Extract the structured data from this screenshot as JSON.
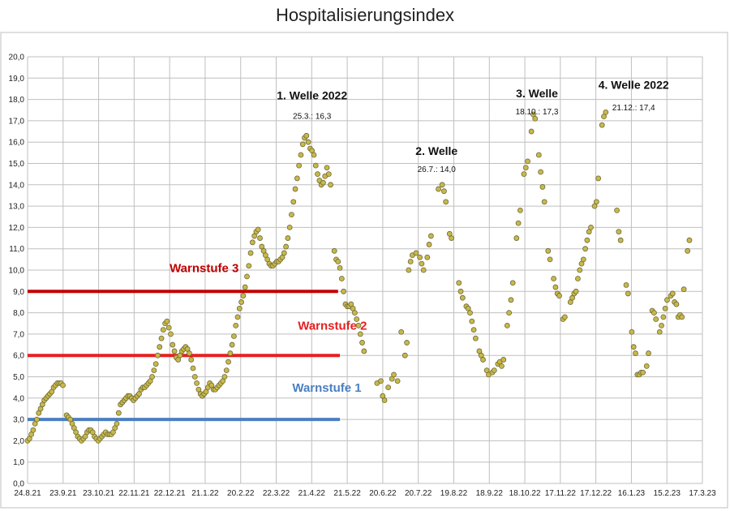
{
  "chart_data": {
    "type": "scatter",
    "title": "Hospitalisierungsindex",
    "xlabel": "",
    "ylabel": "",
    "ylim": [
      0,
      20
    ],
    "y_ticks": [
      "0,0",
      "1,0",
      "2,0",
      "3,0",
      "4,0",
      "5,0",
      "6,0",
      "7,0",
      "8,0",
      "9,0",
      "10,0",
      "11,0",
      "12,0",
      "13,0",
      "14,0",
      "15,0",
      "16,0",
      "17,0",
      "18,0",
      "19,0",
      "20,0"
    ],
    "x_ticks": [
      "24.8.21",
      "23.9.21",
      "23.10.21",
      "22.11.21",
      "22.12.21",
      "21.1.22",
      "20.2.22",
      "22.3.22",
      "21.4.22",
      "21.5.22",
      "20.6.22",
      "20.7.22",
      "19.8.22",
      "18.9.22",
      "18.10.22",
      "17.11.22",
      "17.12.22",
      "16.1.23",
      "15.2.23",
      "17.3.23"
    ],
    "grid": true,
    "marker_color": "#c9b84a",
    "marker_edge": "#6b6b3a",
    "x_unit": "days since 24.8.21",
    "series": [
      {
        "name": "",
        "points": [
          [
            0,
            2.0
          ],
          [
            1,
            2.1
          ],
          [
            2,
            2.3
          ],
          [
            3,
            2.5
          ],
          [
            4,
            2.8
          ],
          [
            5,
            3.0
          ],
          [
            6,
            3.3
          ],
          [
            7,
            3.5
          ],
          [
            8,
            3.7
          ],
          [
            9,
            3.9
          ],
          [
            10,
            4.0
          ],
          [
            11,
            4.1
          ],
          [
            12,
            4.2
          ],
          [
            13,
            4.3
          ],
          [
            14,
            4.5
          ],
          [
            15,
            4.6
          ],
          [
            16,
            4.7
          ],
          [
            17,
            4.7
          ],
          [
            18,
            4.7
          ],
          [
            19,
            4.6
          ],
          [
            21,
            3.2
          ],
          [
            22,
            3.1
          ],
          [
            23,
            3.0
          ],
          [
            24,
            2.8
          ],
          [
            25,
            2.6
          ],
          [
            26,
            2.4
          ],
          [
            27,
            2.2
          ],
          [
            28,
            2.1
          ],
          [
            29,
            2.0
          ],
          [
            30,
            2.1
          ],
          [
            31,
            2.2
          ],
          [
            32,
            2.4
          ],
          [
            33,
            2.5
          ],
          [
            34,
            2.5
          ],
          [
            35,
            2.4
          ],
          [
            36,
            2.2
          ],
          [
            37,
            2.1
          ],
          [
            38,
            2.0
          ],
          [
            39,
            2.1
          ],
          [
            40,
            2.2
          ],
          [
            41,
            2.3
          ],
          [
            42,
            2.4
          ],
          [
            43,
            2.3
          ],
          [
            44,
            2.3
          ],
          [
            45,
            2.3
          ],
          [
            46,
            2.4
          ],
          [
            47,
            2.6
          ],
          [
            48,
            2.8
          ],
          [
            49,
            3.3
          ],
          [
            50,
            3.7
          ],
          [
            51,
            3.8
          ],
          [
            52,
            3.9
          ],
          [
            53,
            4.0
          ],
          [
            54,
            4.1
          ],
          [
            55,
            4.1
          ],
          [
            56,
            4.0
          ],
          [
            57,
            3.9
          ],
          [
            58,
            4.0
          ],
          [
            59,
            4.1
          ],
          [
            60,
            4.2
          ],
          [
            61,
            4.4
          ],
          [
            62,
            4.5
          ],
          [
            63,
            4.5
          ],
          [
            64,
            4.6
          ],
          [
            65,
            4.7
          ],
          [
            66,
            4.8
          ],
          [
            67,
            5.0
          ],
          [
            68,
            5.3
          ],
          [
            69,
            5.6
          ],
          [
            70,
            6.0
          ],
          [
            71,
            6.4
          ],
          [
            72,
            6.8
          ],
          [
            73,
            7.2
          ],
          [
            74,
            7.5
          ],
          [
            75,
            7.6
          ],
          [
            76,
            7.3
          ],
          [
            77,
            7.0
          ],
          [
            78,
            6.5
          ],
          [
            79,
            6.2
          ],
          [
            80,
            5.9
          ],
          [
            81,
            5.8
          ],
          [
            82,
            6.0
          ],
          [
            83,
            6.2
          ],
          [
            84,
            6.3
          ],
          [
            85,
            6.4
          ],
          [
            86,
            6.3
          ],
          [
            87,
            6.1
          ],
          [
            88,
            5.8
          ],
          [
            89,
            5.4
          ],
          [
            90,
            5.0
          ],
          [
            91,
            4.7
          ],
          [
            92,
            4.4
          ],
          [
            93,
            4.2
          ],
          [
            94,
            4.1
          ],
          [
            95,
            4.2
          ],
          [
            96,
            4.3
          ],
          [
            97,
            4.5
          ],
          [
            98,
            4.7
          ],
          [
            99,
            4.6
          ],
          [
            100,
            4.4
          ],
          [
            101,
            4.4
          ],
          [
            102,
            4.5
          ],
          [
            103,
            4.6
          ],
          [
            104,
            4.7
          ],
          [
            105,
            4.8
          ],
          [
            106,
            5.0
          ],
          [
            107,
            5.3
          ],
          [
            108,
            5.7
          ],
          [
            109,
            6.1
          ],
          [
            110,
            6.5
          ],
          [
            111,
            6.9
          ],
          [
            112,
            7.4
          ],
          [
            113,
            7.8
          ],
          [
            114,
            8.2
          ],
          [
            115,
            8.5
          ],
          [
            116,
            8.8
          ],
          [
            117,
            9.2
          ],
          [
            118,
            9.7
          ],
          [
            119,
            10.2
          ],
          [
            120,
            10.8
          ],
          [
            121,
            11.3
          ],
          [
            122,
            11.6
          ],
          [
            123,
            11.8
          ],
          [
            124,
            11.9
          ],
          [
            125,
            11.5
          ],
          [
            126,
            11.1
          ],
          [
            127,
            10.9
          ],
          [
            128,
            10.7
          ],
          [
            129,
            10.5
          ],
          [
            130,
            10.3
          ],
          [
            131,
            10.2
          ],
          [
            132,
            10.2
          ],
          [
            133,
            10.3
          ],
          [
            134,
            10.4
          ],
          [
            135,
            10.4
          ],
          [
            136,
            10.5
          ],
          [
            137,
            10.6
          ],
          [
            138,
            10.8
          ],
          [
            139,
            11.1
          ],
          [
            140,
            11.5
          ],
          [
            141,
            12.0
          ],
          [
            142,
            12.6
          ],
          [
            143,
            13.2
          ],
          [
            144,
            13.8
          ],
          [
            145,
            14.3
          ],
          [
            146,
            14.9
          ],
          [
            147,
            15.4
          ],
          [
            148,
            15.9
          ],
          [
            149,
            16.2
          ],
          [
            150,
            16.3
          ],
          [
            151,
            16.0
          ],
          [
            152,
            15.7
          ],
          [
            153,
            15.6
          ],
          [
            154,
            15.4
          ],
          [
            155,
            14.9
          ],
          [
            156,
            14.5
          ],
          [
            157,
            14.2
          ],
          [
            158,
            14.0
          ],
          [
            159,
            14.1
          ],
          [
            160,
            14.4
          ],
          [
            161,
            14.8
          ],
          [
            162,
            14.5
          ],
          [
            163,
            14.0
          ],
          [
            165,
            10.9
          ],
          [
            166,
            10.5
          ],
          [
            167,
            10.4
          ],
          [
            168,
            10.1
          ],
          [
            169,
            9.6
          ],
          [
            170,
            9.0
          ],
          [
            171,
            8.4
          ],
          [
            172,
            8.3
          ],
          [
            173,
            8.3
          ],
          [
            174,
            8.4
          ],
          [
            175,
            8.2
          ],
          [
            176,
            8.0
          ],
          [
            177,
            7.7
          ],
          [
            178,
            7.4
          ],
          [
            179,
            7.0
          ],
          [
            180,
            6.6
          ],
          [
            181,
            6.2
          ],
          [
            188,
            4.7
          ],
          [
            190,
            4.8
          ],
          [
            191,
            4.1
          ],
          [
            192,
            3.9
          ],
          [
            194,
            4.5
          ],
          [
            196,
            4.9
          ],
          [
            197,
            5.1
          ],
          [
            199,
            4.8
          ],
          [
            201,
            7.1
          ],
          [
            203,
            6.0
          ],
          [
            204,
            6.6
          ],
          [
            205,
            10.0
          ],
          [
            206,
            10.4
          ],
          [
            207,
            10.7
          ],
          [
            209,
            10.8
          ],
          [
            211,
            10.6
          ],
          [
            212,
            10.3
          ],
          [
            213,
            10.0
          ],
          [
            215,
            10.6
          ],
          [
            216,
            11.2
          ],
          [
            217,
            11.6
          ],
          [
            221,
            13.8
          ],
          [
            223,
            14.0
          ],
          [
            224,
            13.7
          ],
          [
            225,
            13.2
          ],
          [
            227,
            11.7
          ],
          [
            228,
            11.5
          ],
          [
            232,
            9.4
          ],
          [
            233,
            9.0
          ],
          [
            234,
            8.7
          ],
          [
            236,
            8.3
          ],
          [
            237,
            8.2
          ],
          [
            238,
            8.0
          ],
          [
            239,
            7.6
          ],
          [
            240,
            7.2
          ],
          [
            241,
            6.8
          ],
          [
            243,
            6.2
          ],
          [
            244,
            6.0
          ],
          [
            245,
            5.8
          ],
          [
            247,
            5.3
          ],
          [
            248,
            5.1
          ],
          [
            250,
            5.2
          ],
          [
            251,
            5.3
          ],
          [
            253,
            5.6
          ],
          [
            254,
            5.7
          ],
          [
            255,
            5.5
          ],
          [
            256,
            5.8
          ],
          [
            258,
            7.4
          ],
          [
            259,
            8.0
          ],
          [
            260,
            8.6
          ],
          [
            261,
            9.4
          ],
          [
            263,
            11.5
          ],
          [
            264,
            12.2
          ],
          [
            265,
            12.8
          ],
          [
            267,
            14.5
          ],
          [
            268,
            14.8
          ],
          [
            269,
            15.1
          ],
          [
            271,
            16.5
          ],
          [
            272,
            17.3
          ],
          [
            273,
            17.1
          ],
          [
            275,
            15.4
          ],
          [
            276,
            14.6
          ],
          [
            277,
            13.9
          ],
          [
            278,
            13.2
          ],
          [
            280,
            10.9
          ],
          [
            281,
            10.5
          ],
          [
            283,
            9.6
          ],
          [
            284,
            9.2
          ],
          [
            285,
            8.9
          ],
          [
            286,
            8.8
          ],
          [
            288,
            7.7
          ],
          [
            289,
            7.8
          ],
          [
            292,
            8.5
          ],
          [
            293,
            8.7
          ],
          [
            294,
            8.9
          ],
          [
            295,
            9.0
          ],
          [
            296,
            9.6
          ],
          [
            297,
            10.0
          ],
          [
            298,
            10.3
          ],
          [
            299,
            10.5
          ],
          [
            300,
            11.0
          ],
          [
            301,
            11.4
          ],
          [
            302,
            11.8
          ],
          [
            303,
            12.0
          ],
          [
            305,
            13.0
          ],
          [
            306,
            13.2
          ],
          [
            307,
            14.3
          ],
          [
            309,
            16.8
          ],
          [
            310,
            17.2
          ],
          [
            311,
            17.4
          ],
          [
            317,
            12.8
          ],
          [
            318,
            11.8
          ],
          [
            319,
            11.4
          ],
          [
            322,
            9.3
          ],
          [
            323,
            8.9
          ],
          [
            325,
            7.1
          ],
          [
            326,
            6.4
          ],
          [
            327,
            6.1
          ],
          [
            328,
            5.1
          ],
          [
            329,
            5.1
          ],
          [
            330,
            5.2
          ],
          [
            331,
            5.2
          ],
          [
            333,
            5.5
          ],
          [
            334,
            6.1
          ],
          [
            336,
            8.1
          ],
          [
            337,
            8.0
          ],
          [
            338,
            7.7
          ],
          [
            340,
            7.1
          ],
          [
            341,
            7.4
          ],
          [
            342,
            7.8
          ],
          [
            343,
            8.2
          ],
          [
            344,
            8.6
          ],
          [
            346,
            8.8
          ],
          [
            347,
            8.9
          ],
          [
            348,
            8.5
          ],
          [
            349,
            8.4
          ],
          [
            350,
            7.8
          ],
          [
            351,
            7.9
          ],
          [
            352,
            7.8
          ],
          [
            353,
            9.1
          ],
          [
            355,
            10.9
          ],
          [
            356,
            11.4
          ]
        ]
      }
    ],
    "thresholds": [
      {
        "label": "Warnstufe 3",
        "value": 9.0,
        "x_end": 167,
        "color": "#c00000"
      },
      {
        "label": "Warnstufe 2",
        "value": 6.0,
        "x_end": 168,
        "color": "#e62020"
      },
      {
        "label": "Warnstufe 1",
        "value": 3.0,
        "x_end": 168,
        "color": "#4a7fc1"
      }
    ],
    "annotations": [
      {
        "title": "1. Welle 2022",
        "detail": "25.3.: 16,3",
        "x": 153,
        "y_title": 18.0,
        "y_detail": 17.1
      },
      {
        "title": "2. Welle",
        "detail": "26.7.: 14,0",
        "x": 220,
        "y_title": 15.4,
        "y_detail": 14.6
      },
      {
        "title": "3. Welle",
        "detail": "18.10.: 17,3",
        "x": 274,
        "y_title": 18.1,
        "y_detail": 17.3
      },
      {
        "title": "4. Welle 2022",
        "detail": "21.12.: 17,4",
        "x": 326,
        "y_title": 18.5,
        "y_detail": 17.5
      }
    ],
    "threshold_label_positions": [
      {
        "x": 95,
        "y": 9.9
      },
      {
        "x": 164,
        "y": 7.2
      },
      {
        "x": 161,
        "y": 4.3
      }
    ]
  }
}
